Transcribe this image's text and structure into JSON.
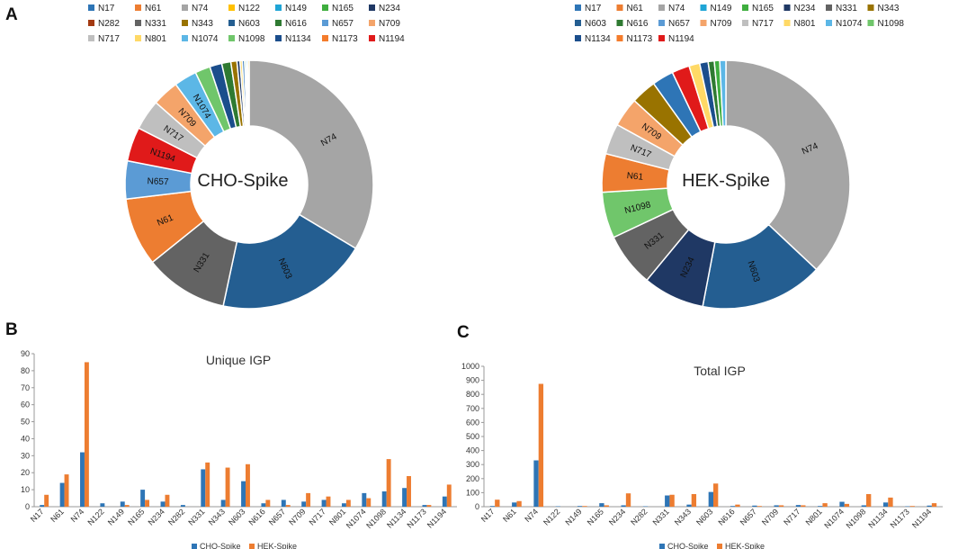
{
  "colors": {
    "N17": "#2e75b6",
    "N61": "#ed7d31",
    "N74": "#a5a5a5",
    "N122": "#ffc000",
    "N149": "#1fa5d6",
    "N165": "#3fae3f",
    "N234": "#1f3864",
    "N282": "#a33a12",
    "N331": "#636363",
    "N343": "#997300",
    "N603": "#245e91",
    "N616": "#2f7a32",
    "N657": "#5b9bd5",
    "N709": "#f4a46a",
    "N717": "#bfbfbf",
    "N801": "#ffd966",
    "N1074": "#5cb7e6",
    "N1098": "#70c66b",
    "N1134": "#1b4e8c",
    "N1173": "#f47c2c",
    "N1194": "#e01a1a",
    "cho": "#2e75b6",
    "hek": "#ed7d31"
  },
  "chart_data": [
    {
      "panel": "A",
      "type": "pie",
      "center_label": "CHO-Spike",
      "legend": [
        "N17",
        "N61",
        "N74",
        "N122",
        "N149",
        "N165",
        "N234",
        "N282",
        "N331",
        "N343",
        "N603",
        "N616",
        "N657",
        "N709",
        "N717",
        "N801",
        "N1074",
        "N1098",
        "N1134",
        "N1173",
        "N1194"
      ],
      "slices": [
        {
          "label": "N74",
          "value": 34.0,
          "show_label": true
        },
        {
          "label": "N603",
          "value": 20.0,
          "show_label": true
        },
        {
          "label": "N331",
          "value": 11.0,
          "show_label": true
        },
        {
          "label": "N61",
          "value": 9.0,
          "show_label": true
        },
        {
          "label": "N657",
          "value": 5.0,
          "show_label": true
        },
        {
          "label": "N1194",
          "value": 4.5,
          "show_label": true
        },
        {
          "label": "N717",
          "value": 4.0,
          "show_label": true
        },
        {
          "label": "N709",
          "value": 3.5,
          "show_label": true
        },
        {
          "label": "N1074",
          "value": 3.0,
          "show_label": true
        },
        {
          "label": "N1098",
          "value": 2.0,
          "show_label": false
        },
        {
          "label": "N1134",
          "value": 1.6,
          "show_label": false
        },
        {
          "label": "N616",
          "value": 1.2,
          "show_label": false
        },
        {
          "label": "N343",
          "value": 0.8,
          "show_label": false
        },
        {
          "label": "N234",
          "value": 0.4,
          "show_label": false
        },
        {
          "label": "N801",
          "value": 0.3,
          "show_label": false
        },
        {
          "label": "N17",
          "value": 0.3,
          "show_label": false
        },
        {
          "label": "N165",
          "value": 0.2,
          "show_label": false
        },
        {
          "label": "N149",
          "value": 0.2,
          "show_label": false
        },
        {
          "label": "N122",
          "value": 0.2,
          "show_label": false
        }
      ]
    },
    {
      "panel": "",
      "type": "pie",
      "center_label": "HEK-Spike",
      "legend": [
        "N17",
        "N61",
        "N74",
        "N149",
        "N165",
        "N234",
        "N331",
        "N343",
        "N603",
        "N616",
        "N657",
        "N709",
        "N717",
        "N801",
        "N1074",
        "N1098",
        "N1134",
        "N1173",
        "N1194"
      ],
      "slices": [
        {
          "label": "N74",
          "value": 37.0,
          "show_label": true
        },
        {
          "label": "N603",
          "value": 16.0,
          "show_label": true
        },
        {
          "label": "N234",
          "value": 8.0,
          "show_label": true
        },
        {
          "label": "N331",
          "value": 7.0,
          "show_label": true
        },
        {
          "label": "N1098",
          "value": 6.0,
          "show_label": true
        },
        {
          "label": "N61",
          "value": 5.0,
          "show_label": true
        },
        {
          "label": "N717",
          "value": 4.0,
          "show_label": true
        },
        {
          "label": "N709",
          "value": 3.8,
          "show_label": true
        },
        {
          "label": "N343",
          "value": 3.3,
          "show_label": false
        },
        {
          "label": "N17",
          "value": 2.8,
          "show_label": false
        },
        {
          "label": "N1194",
          "value": 2.3,
          "show_label": false
        },
        {
          "label": "N801",
          "value": 1.4,
          "show_label": false
        },
        {
          "label": "N1134",
          "value": 1.1,
          "show_label": false
        },
        {
          "label": "N616",
          "value": 0.8,
          "show_label": false
        },
        {
          "label": "N165",
          "value": 0.7,
          "show_label": false
        },
        {
          "label": "N1074",
          "value": 0.8,
          "show_label": false
        }
      ]
    },
    {
      "panel": "B",
      "type": "bar",
      "title": "Unique IGP",
      "categories": [
        "N17",
        "N61",
        "N74",
        "N122",
        "N149",
        "N165",
        "N234",
        "N282",
        "N331",
        "N343",
        "N603",
        "N616",
        "N657",
        "N709",
        "N717",
        "N801",
        "N1074",
        "N1098",
        "N1134",
        "N1173",
        "N1194"
      ],
      "ylim": [
        0,
        90
      ],
      "yticks": [
        0,
        10,
        20,
        30,
        40,
        50,
        60,
        70,
        80,
        90
      ],
      "series": [
        {
          "name": "CHO-Spike",
          "values": [
            1,
            14,
            32,
            2,
            3,
            10,
            3,
            1,
            22,
            4,
            15,
            2,
            4,
            3,
            4,
            2,
            8,
            9,
            11,
            1,
            6
          ]
        },
        {
          "name": "HEK-Spike",
          "values": [
            7,
            19,
            85,
            0,
            1,
            4,
            7,
            0,
            26,
            23,
            25,
            4,
            1,
            8,
            6,
            4,
            5,
            28,
            18,
            1,
            13
          ]
        }
      ]
    },
    {
      "panel": "C",
      "type": "bar",
      "title": "Total IGP",
      "categories": [
        "N17",
        "N61",
        "N74",
        "N122",
        "N149",
        "N165",
        "N234",
        "N282",
        "N331",
        "N343",
        "N603",
        "N616",
        "N657",
        "N709",
        "N717",
        "N801",
        "N1074",
        "N1098",
        "N1134",
        "N1173",
        "N1194"
      ],
      "ylim": [
        0,
        1000
      ],
      "yticks": [
        0,
        100,
        200,
        300,
        400,
        500,
        600,
        700,
        800,
        900,
        1000
      ],
      "series": [
        {
          "name": "CHO-Spike",
          "values": [
            5,
            30,
            330,
            3,
            5,
            25,
            10,
            3,
            80,
            15,
            105,
            5,
            8,
            10,
            12,
            5,
            35,
            10,
            30,
            3,
            8
          ]
        },
        {
          "name": "HEK-Spike",
          "values": [
            50,
            40,
            875,
            0,
            5,
            10,
            95,
            0,
            85,
            90,
            165,
            15,
            5,
            10,
            10,
            25,
            20,
            90,
            65,
            5,
            25
          ]
        }
      ]
    }
  ]
}
